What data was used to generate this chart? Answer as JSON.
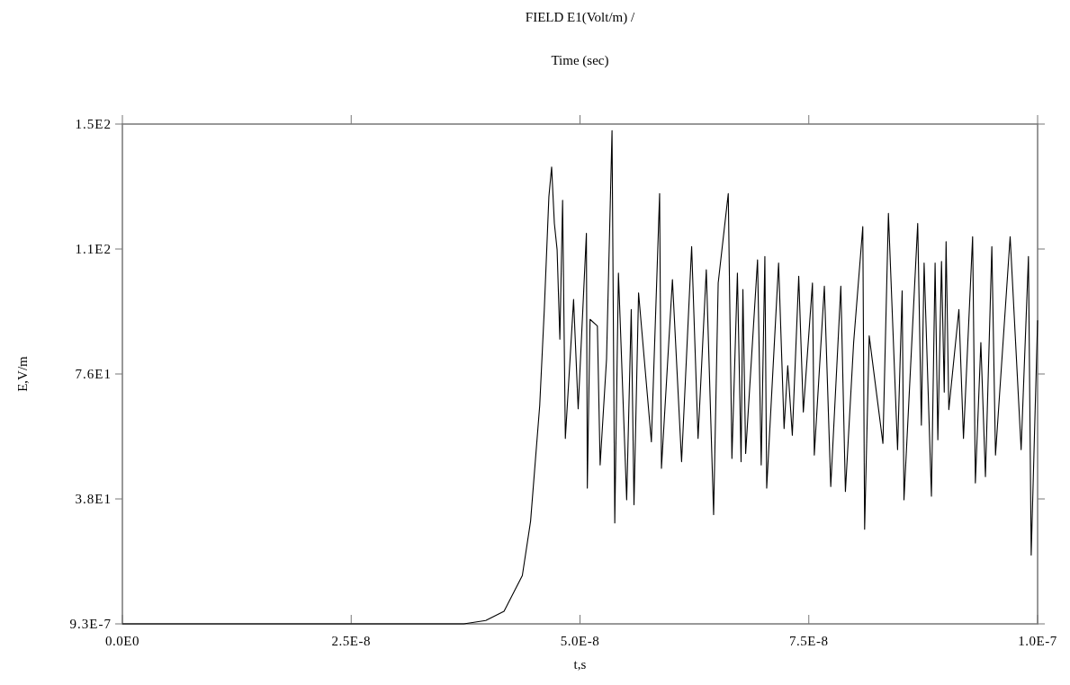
{
  "chart_data": {
    "type": "line",
    "title": "FIELD E1(Volt/m) /",
    "subtitle": "Time (sec)",
    "xlabel": "t,s",
    "ylabel": "E,V/m",
    "xlim": [
      0,
      1e-07
    ],
    "xticks": [
      {
        "value": 0,
        "label": "0.0E0"
      },
      {
        "value": 2.5e-08,
        "label": "2.5E-8"
      },
      {
        "value": 5e-08,
        "label": "5.0E-8"
      },
      {
        "value": 7.5e-08,
        "label": "7.5E-8"
      },
      {
        "value": 1e-07,
        "label": "1.0E-7"
      }
    ],
    "ylim": [
      9.3e-07,
      151
    ],
    "yticks": [
      {
        "value": 9.3e-07,
        "label": "9.3E-7"
      },
      {
        "value": 37.75,
        "label": "3.8E1"
      },
      {
        "value": 75.5,
        "label": "7.6E1"
      },
      {
        "value": 113.25,
        "label": "1.1E2"
      },
      {
        "value": 151,
        "label": "1.5E2"
      }
    ],
    "marker": "none",
    "line_style": "solid",
    "series": [
      {
        "color": "#000000",
        "x": [
          0,
          3.73e-08,
          3.97e-08,
          4.17e-08,
          4.37e-08,
          4.46e-08,
          4.56e-08,
          4.61e-08,
          4.66e-08,
          4.69e-08,
          4.72e-08,
          4.75e-08,
          4.78e-08,
          4.81e-08,
          4.84e-08,
          4.93e-08,
          4.98e-08,
          5.07e-08,
          5.08e-08,
          5.11e-08,
          5.19e-08,
          5.22e-08,
          5.29e-08,
          5.35e-08,
          5.38e-08,
          5.42e-08,
          5.51e-08,
          5.56e-08,
          5.59e-08,
          5.64e-08,
          5.78e-08,
          5.87e-08,
          5.89e-08,
          6.01e-08,
          6.11e-08,
          6.22e-08,
          6.29e-08,
          6.38e-08,
          6.46e-08,
          6.51e-08,
          6.62e-08,
          6.66e-08,
          6.72e-08,
          6.76e-08,
          6.78e-08,
          6.81e-08,
          6.94e-08,
          6.98e-08,
          7.02e-08,
          7.04e-08,
          7.17e-08,
          7.23e-08,
          7.27e-08,
          7.32e-08,
          7.39e-08,
          7.44e-08,
          7.54e-08,
          7.56e-08,
          7.67e-08,
          7.74e-08,
          7.85e-08,
          7.9e-08,
          7.99e-08,
          8.09e-08,
          8.11e-08,
          8.16e-08,
          8.31e-08,
          8.37e-08,
          8.47e-08,
          8.52e-08,
          8.54e-08,
          8.69e-08,
          8.73e-08,
          8.76e-08,
          8.84e-08,
          8.88e-08,
          8.91e-08,
          8.95e-08,
          8.98e-08,
          9e-08,
          9.03e-08,
          9.14e-08,
          9.19e-08,
          9.29e-08,
          9.32e-08,
          9.38e-08,
          9.43e-08,
          9.5e-08,
          9.54e-08,
          9.7e-08,
          9.82e-08,
          9.9e-08,
          9.93e-08,
          1e-07
        ],
        "values": [
          9.3e-07,
          9.3e-07,
          1,
          3.8,
          14.6,
          31,
          66,
          95,
          129,
          138,
          121,
          113,
          86,
          128,
          56,
          98,
          65,
          118,
          41,
          92,
          90,
          48,
          80,
          149,
          30.5,
          106,
          37.5,
          95,
          36,
          100,
          55,
          130,
          47,
          104,
          49,
          114,
          56,
          107,
          33,
          103,
          130,
          50,
          106,
          49,
          101,
          51.5,
          110,
          48,
          111,
          41,
          109,
          59,
          78,
          57,
          105,
          64,
          103,
          51,
          102,
          41.5,
          102,
          40,
          85,
          120,
          28.6,
          87,
          54.5,
          124,
          52.6,
          100.6,
          37.5,
          121,
          60,
          109,
          38.6,
          109,
          55.6,
          109.5,
          70,
          115.5,
          64.7,
          95,
          56,
          117,
          42.6,
          85,
          44.5,
          114,
          51,
          117,
          52.6,
          111,
          20.8,
          91.7
        ]
      }
    ]
  }
}
